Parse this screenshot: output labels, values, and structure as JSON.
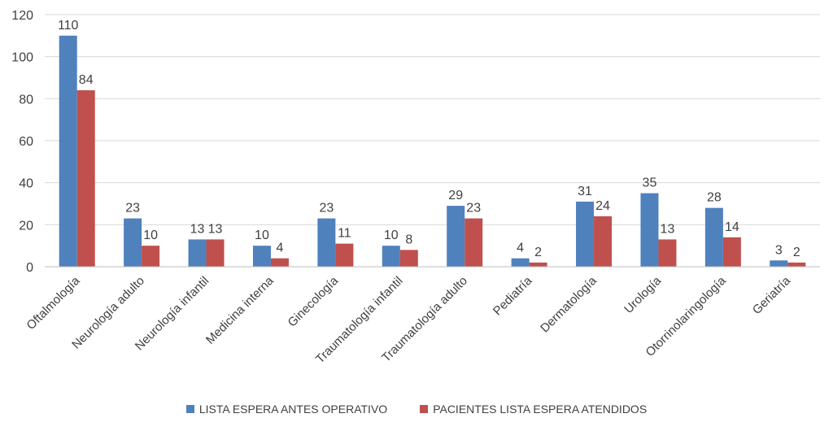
{
  "chart_data": {
    "type": "bar",
    "categories": [
      "Oftalmología",
      "Neurología adulto",
      "Neurología infantil",
      "Medicina interna",
      "Ginecología",
      "Traumatología infantil",
      "Traumatología adulto",
      "Pediatría",
      "Dermatología",
      "Urología",
      "Otorrinolaringología",
      "Geriatría"
    ],
    "series": [
      {
        "name": "LISTA ESPERA ANTES OPERATIVO",
        "values": [
          110,
          23,
          13,
          10,
          23,
          10,
          29,
          4,
          31,
          35,
          28,
          3
        ],
        "color": "#4f81bd"
      },
      {
        "name": "PACIENTES LISTA ESPERA ATENDIDOS",
        "values": [
          84,
          10,
          13,
          4,
          11,
          8,
          23,
          2,
          24,
          13,
          14,
          2
        ],
        "color": "#c0504d"
      }
    ],
    "ylim": [
      0,
      120
    ],
    "yticks": [
      0,
      20,
      40,
      60,
      80,
      100,
      120
    ],
    "grid": true,
    "legend": "bottom"
  }
}
